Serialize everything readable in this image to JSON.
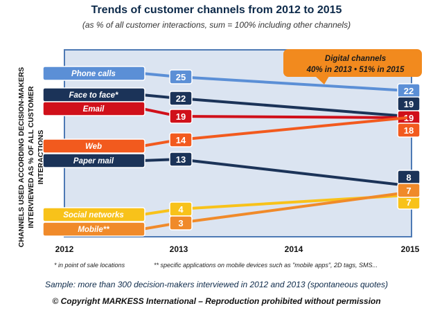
{
  "title": "Trends of customer channels from 2012 to 2015",
  "subtitle": "(as % of all customer interactions, sum = 100% including other channels)",
  "footnotes": {
    "left": "* in point of sale locations",
    "right": "** specific applications on mobile devices such as \"mobile apps\", 2D tags, SMS..."
  },
  "sample_note": "Sample: more than 300 decision-makers interviewed in 2012 and 2013 (spontaneous quotes)",
  "copyright": "© Copyright MARKESS International – Reproduction prohibited without permission",
  "callout": {
    "line1": "Digital channels",
    "line2": "40% in 2013 • 51% in 2015",
    "color": "#f28a1e"
  },
  "chart_data": {
    "type": "line",
    "title": "Trends of customer channels from 2012 to 2015",
    "subtitle": "(as % of all customer interactions, sum = 100% including other channels)",
    "ylabel": "CHANNELS USED ACCORDING DECISION-MAKERS INTERVIEWED AS % OF ALL CUSTOMER INTERACTIONS",
    "xlabel": "",
    "x": [
      "2012",
      "2013",
      "2014",
      "2015"
    ],
    "grid": false,
    "series": [
      {
        "name": "Phone calls",
        "color": "#5b8fd6",
        "values": [
          null,
          25,
          null,
          22
        ],
        "labels": [
          "25",
          "22"
        ]
      },
      {
        "name": "Face to face*",
        "color": "#1b3358",
        "values": [
          null,
          22,
          null,
          19
        ],
        "labels": [
          "22",
          "19"
        ]
      },
      {
        "name": "Email",
        "color": "#d0101a",
        "values": [
          null,
          19,
          null,
          19
        ],
        "labels": [
          "19",
          "19"
        ]
      },
      {
        "name": "Web",
        "color": "#f25a1e",
        "values": [
          null,
          14,
          null,
          18
        ],
        "labels": [
          "14",
          "18"
        ]
      },
      {
        "name": "Paper mail",
        "color": "#1b3358",
        "values": [
          null,
          13,
          null,
          8
        ],
        "labels": [
          "13",
          "8"
        ]
      },
      {
        "name": "Social networks",
        "color": "#f8c21a",
        "values": [
          null,
          4,
          null,
          7
        ],
        "labels": [
          "4",
          "7"
        ]
      },
      {
        "name": "Mobile**",
        "color": "#f08a2a",
        "values": [
          null,
          3,
          null,
          7
        ],
        "labels": [
          "3",
          "7"
        ]
      }
    ]
  }
}
